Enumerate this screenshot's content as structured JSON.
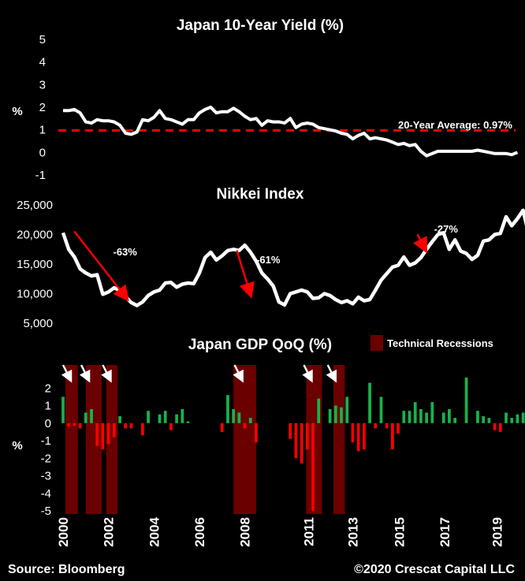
{
  "source": "Source: Bloomberg",
  "copyright": "©2020 Crescat Capital LLC",
  "colors": {
    "background": "#000000",
    "line": "#ffffff",
    "average": "#ff0000",
    "up": "#19b24b",
    "down": "#ff0000",
    "recession": "#6b0000",
    "arrow": "#ff0000"
  },
  "chart_data": [
    {
      "type": "line",
      "title": "Japan 10-Year Yield (%)",
      "ylabel": "%",
      "ylim": [
        -1,
        5
      ],
      "yticks": [
        "5",
        "4",
        "3",
        "2",
        "1",
        "0",
        "-1"
      ],
      "reference_label": "20-Year Average: 0.97%",
      "reference_value": 0.97,
      "x_start": 2000.0,
      "x_step": 0.25,
      "values": [
        1.85,
        1.85,
        1.9,
        1.75,
        1.35,
        1.3,
        1.45,
        1.4,
        1.4,
        1.35,
        1.2,
        0.85,
        0.8,
        0.9,
        1.45,
        1.4,
        1.55,
        1.85,
        1.5,
        1.45,
        1.35,
        1.25,
        1.45,
        1.45,
        1.75,
        1.9,
        2.0,
        1.75,
        1.8,
        1.8,
        1.95,
        1.8,
        1.6,
        1.45,
        1.5,
        1.2,
        1.4,
        1.35,
        1.35,
        1.3,
        1.5,
        1.1,
        1.25,
        1.3,
        1.25,
        1.1,
        1.05,
        1.0,
        0.95,
        0.85,
        0.8,
        0.6,
        0.75,
        0.85,
        0.6,
        0.65,
        0.6,
        0.55,
        0.45,
        0.35,
        0.4,
        0.3,
        0.35,
        0.05,
        -0.15,
        -0.05,
        0.05,
        0.05,
        0.05,
        0.05,
        0.05,
        0.05,
        0.05,
        0.1,
        0.05,
        0.0,
        -0.05,
        -0.05,
        -0.05,
        -0.1,
        0.0
      ]
    },
    {
      "type": "line",
      "title": "Nikkei Index",
      "ylim": [
        5000,
        25000
      ],
      "yticks": [
        "25,000",
        "20,000",
        "15,000",
        "10,000",
        "5,000"
      ],
      "x_start": 2000.0,
      "x_step": 0.25,
      "values": [
        20300,
        17500,
        16200,
        14200,
        13500,
        13000,
        13200,
        9900,
        10300,
        11000,
        10500,
        9500,
        8500,
        8000,
        8600,
        9700,
        10300,
        10600,
        11800,
        11900,
        11100,
        11600,
        11800,
        11700,
        13500,
        16100,
        17000,
        15700,
        16400,
        17300,
        17500,
        17300,
        18200,
        17000,
        15500,
        13500,
        12500,
        11300,
        8600,
        8100,
        10000,
        10300,
        10600,
        10300,
        9200,
        9300,
        10000,
        9700,
        9000,
        8500,
        8800,
        8300,
        9400,
        8800,
        9000,
        10600,
        12300,
        13400,
        14500,
        14800,
        16200,
        14800,
        15200,
        16100,
        17500,
        18800,
        20000,
        20300,
        17500,
        19100,
        17200,
        16800,
        15800,
        16500,
        18900,
        19100,
        20000,
        20200,
        23000,
        21500,
        22700,
        24100,
        20000,
        21300,
        21300,
        21700,
        23700
      ],
      "annotations": [
        {
          "label": "-63%",
          "from_x": 2000.15,
          "from_y": 20000,
          "to_x": 2002.8,
          "to_y": 8400
        },
        {
          "label": "-61%",
          "from_x": 2007.3,
          "from_y": 16800,
          "to_x": 2008.25,
          "to_y": 9000
        },
        {
          "label": "-27%",
          "from_x": 2015.25,
          "from_y": 19500,
          "to_x": 2015.95,
          "to_y": 16600
        }
      ]
    },
    {
      "type": "bar",
      "title": "Japan  GDP QoQ (%)",
      "ylabel": "%",
      "ylim": [
        -5,
        3
      ],
      "yticks": [
        "2",
        "1",
        "0",
        "-1",
        "-2",
        "-3",
        "-4",
        "-5"
      ],
      "legend": "Technical Recessions",
      "x_tick_labels": [
        "2000",
        "2002",
        "2004",
        "2006",
        "2008",
        "2011",
        "2013",
        "2015",
        "2017",
        "2019"
      ],
      "x_start": 2000.0,
      "x_step": 0.25,
      "recessions": [
        [
          2000.1,
          2000.65
        ],
        [
          2001.0,
          2001.7
        ],
        [
          2001.9,
          2002.4
        ],
        [
          2007.5,
          2008.5
        ],
        [
          2010.7,
          2011.4
        ],
        [
          2011.9,
          2012.4
        ]
      ],
      "arrows_at": [
        2000.0,
        2000.8,
        2001.75,
        2007.55,
        2010.6,
        2011.65
      ],
      "values": [
        1.5,
        -0.2,
        -0.15,
        -0.3,
        0.6,
        0.8,
        -1.3,
        -1.5,
        -1.2,
        -0.8,
        0.4,
        -0.3,
        -0.3,
        0.0,
        -0.7,
        0.7,
        0.0,
        0.5,
        0.7,
        -0.4,
        0.5,
        0.8,
        0.1,
        0.0,
        0.0,
        0.0,
        0.0,
        0.0,
        -0.5,
        1.6,
        0.8,
        0.6,
        -0.3,
        0.3,
        -1.1,
        0.0,
        0.0,
        0.0,
        0.0,
        0.0,
        -0.9,
        -2.0,
        -2.3,
        -1.5,
        -5.0,
        1.4,
        0.0,
        0.8,
        1.0,
        0.9,
        1.5,
        -1.1,
        -1.6,
        -1.5,
        2.3,
        -0.3,
        1.5,
        -0.3,
        -1.5,
        -0.6,
        0.7,
        0.7,
        1.2,
        0.8,
        0.6,
        1.2,
        0.0,
        0.6,
        0.8,
        0.3,
        0.0,
        2.6,
        0.0,
        0.7,
        0.4,
        0.3,
        -0.4,
        -0.5,
        0.6,
        0.3,
        0.5,
        0.6,
        0.8,
        0.6,
        0.4,
        -0.5,
        -0.6,
        0.5,
        -0.6,
        1.4,
        0.6,
        0.8,
        0.7
      ]
    }
  ]
}
